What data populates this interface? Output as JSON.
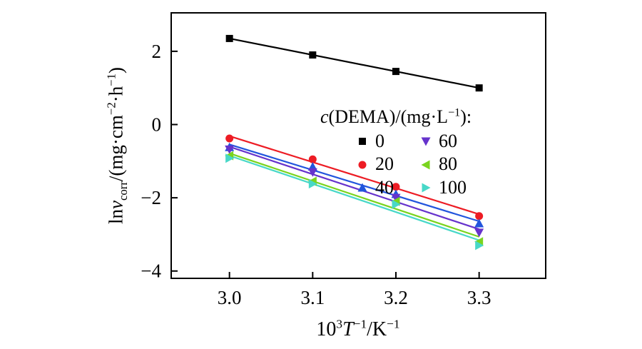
{
  "chart_data": {
    "type": "scatter",
    "title": "",
    "xlabel": "10³T⁻¹/K⁻¹",
    "ylabel": "lnv_corr/(mg·cm⁻²·h⁻¹)",
    "xlabel_rich": [
      {
        "t": "10"
      },
      {
        "t": "3",
        "sup": true
      },
      {
        "t": "T",
        "i": true
      },
      {
        "t": "−1",
        "sup": true
      },
      {
        "t": "/K"
      },
      {
        "t": "−1",
        "sup": true
      }
    ],
    "ylabel_rich": [
      {
        "t": "ln"
      },
      {
        "t": "v",
        "i": true
      },
      {
        "t": "corr",
        "sub": true
      },
      {
        "t": "/(mg·cm"
      },
      {
        "t": "−2",
        "sup": true
      },
      {
        "t": "·h"
      },
      {
        "t": "−1",
        "sup": true
      },
      {
        "t": ")"
      }
    ],
    "legend_title": "c(DEMA)/(mg·L⁻¹):",
    "legend_title_rich": [
      {
        "t": "c",
        "i": true
      },
      {
        "t": "(DEMA)/(mg·L"
      },
      {
        "t": "−1",
        "sup": true
      },
      {
        "t": "):"
      }
    ],
    "legend_position": "upper-right-inside",
    "grid": false,
    "xlim": [
      2.93,
      3.38
    ],
    "ylim": [
      -4.2,
      3.05
    ],
    "xticks": [
      3.0,
      3.1,
      3.2,
      3.3
    ],
    "xtick_labels": [
      "3.0",
      "3.1",
      "3.2",
      "3.3"
    ],
    "yticks": [
      -4,
      -2,
      0,
      2
    ],
    "ytick_labels": [
      "−4",
      "−2",
      "0",
      "2"
    ],
    "series": [
      {
        "name": "0",
        "marker": "square",
        "color": "#000000",
        "x": [
          3.0,
          3.1,
          3.2,
          3.3
        ],
        "y": [
          2.35,
          1.9,
          1.45,
          1.0
        ]
      },
      {
        "name": "20",
        "marker": "circle",
        "color": "#ed1c24",
        "x": [
          3.0,
          3.1,
          3.2,
          3.3
        ],
        "y": [
          -0.38,
          -0.95,
          -1.7,
          -2.5
        ]
      },
      {
        "name": "40",
        "marker": "triangle-up",
        "color": "#2255dd",
        "x": [
          3.0,
          3.1,
          3.2,
          3.3
        ],
        "y": [
          -0.62,
          -1.15,
          -1.9,
          -2.7
        ]
      },
      {
        "name": "60",
        "marker": "triangle-down",
        "color": "#6633cc",
        "x": [
          3.0,
          3.1,
          3.2,
          3.3
        ],
        "y": [
          -0.68,
          -1.3,
          -2.0,
          -2.95
        ]
      },
      {
        "name": "80",
        "marker": "triangle-left",
        "color": "#7ad41e",
        "x": [
          3.0,
          3.1,
          3.2,
          3.3
        ],
        "y": [
          -0.85,
          -1.55,
          -2.1,
          -3.2
        ]
      },
      {
        "name": "100",
        "marker": "triangle-right",
        "color": "#48d8c8",
        "x": [
          3.0,
          3.1,
          3.2,
          3.3
        ],
        "y": [
          -0.92,
          -1.62,
          -2.18,
          -3.3
        ]
      }
    ]
  }
}
